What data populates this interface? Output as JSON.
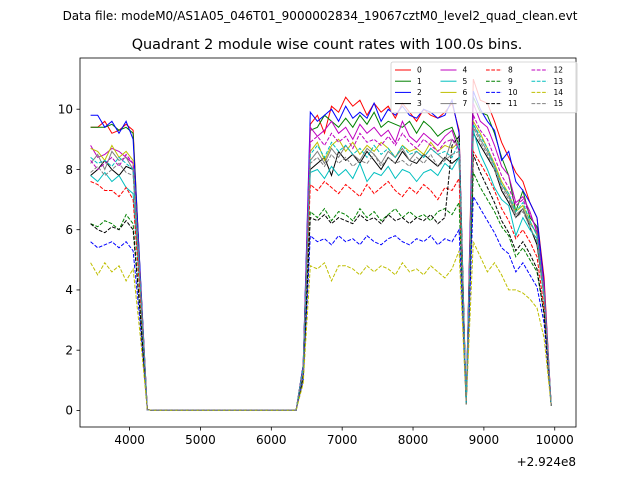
{
  "suptitle": "Data file: modeM0/AS1A05_046T01_9000002834_19067cztM0_level2_quad_clean.evt",
  "chart_data": {
    "type": "line",
    "title": "Quadrant 2 module wise count rates with 100.0s bins.",
    "xlabel": "",
    "ylabel": "",
    "x_offset_label": "+2.924e8",
    "xlim": [
      3300,
      10300
    ],
    "ylim": [
      -0.55,
      11.7
    ],
    "x_ticks": [
      4000,
      5000,
      6000,
      7000,
      8000,
      9000,
      10000
    ],
    "x_tick_labels": [
      "4000",
      "5000",
      "6000",
      "7000",
      "8000",
      "9000",
      "10000"
    ],
    "y_ticks": [
      0,
      2,
      4,
      6,
      8,
      10
    ],
    "y_tick_labels": [
      "0",
      "2",
      "4",
      "6",
      "8",
      "10"
    ],
    "legend_position": "top-right",
    "legend_columns": 4,
    "grid": false,
    "x": [
      3450,
      3550,
      3650,
      3750,
      3850,
      3950,
      4050,
      4150,
      4250,
      4350,
      4450,
      4550,
      4650,
      4750,
      4850,
      4950,
      5050,
      5150,
      5250,
      5350,
      5450,
      5550,
      5650,
      5750,
      5850,
      5950,
      6050,
      6150,
      6250,
      6350,
      6450,
      6550,
      6650,
      6750,
      6850,
      6950,
      7050,
      7150,
      7250,
      7350,
      7450,
      7550,
      7650,
      7750,
      7850,
      7950,
      8050,
      8150,
      8250,
      8350,
      8450,
      8550,
      8650,
      8750,
      8850,
      8950,
      9050,
      9150,
      9250,
      9350,
      9450,
      9550,
      9650,
      9750,
      9850,
      9950
    ],
    "series": [
      {
        "name": "0",
        "color": "#ff0000",
        "dash": "solid",
        "values": [
          9.4,
          9.4,
          9.6,
          9.2,
          9.3,
          9.5,
          9.3,
          4.5,
          0.02,
          0,
          0,
          0,
          0,
          0,
          0,
          0,
          0,
          0,
          0,
          0,
          0,
          0,
          0,
          0,
          0,
          0,
          0,
          0,
          0,
          0,
          1.5,
          9.5,
          9.8,
          9.2,
          10.1,
          9.9,
          10.4,
          10.1,
          10.3,
          9.8,
          10.2,
          9.9,
          10.1,
          9.7,
          10.2,
          9.9,
          9.6,
          10,
          9.8,
          9.7,
          9.9,
          10.2,
          9.3,
          0.2,
          11.0,
          10.3,
          10.2,
          9.6,
          8.9,
          8.4,
          7.9,
          7.6,
          6.9,
          6.4,
          4.4,
          0.15
        ]
      },
      {
        "name": "1",
        "color": "#008000",
        "dash": "solid",
        "values": [
          9.4,
          9.4,
          9.4,
          9.5,
          9.3,
          9.4,
          9.2,
          4.5,
          0.02,
          0,
          0,
          0,
          0,
          0,
          0,
          0,
          0,
          0,
          0,
          0,
          0,
          0,
          0,
          0,
          0,
          0,
          0,
          0,
          0,
          0,
          1.5,
          9.3,
          9.4,
          9.8,
          9.6,
          9.4,
          9.7,
          9.4,
          9.8,
          9.5,
          9.9,
          9.4,
          9.6,
          9.5,
          9.4,
          9.6,
          9.2,
          9.6,
          9.4,
          9.1,
          9.3,
          9.4,
          8.8,
          0.2,
          10.4,
          9.9,
          9.8,
          9.2,
          8.4,
          7.8,
          6.6,
          7.3,
          6.4,
          6.1,
          4.0,
          0.15
        ]
      },
      {
        "name": "2",
        "color": "#0000ff",
        "dash": "solid",
        "values": [
          9.8,
          9.8,
          9.4,
          9.6,
          9.2,
          9.6,
          9.0,
          4.6,
          0.02,
          0,
          0,
          0,
          0,
          0,
          0,
          0,
          0,
          0,
          0,
          0,
          0,
          0,
          0,
          0,
          0,
          0,
          0,
          0,
          0,
          0,
          1.5,
          9.9,
          9.6,
          9.8,
          10.0,
          9.6,
          10.1,
          9.7,
          9.9,
          9.7,
          10.2,
          9.6,
          10.0,
          9.8,
          10.1,
          9.8,
          9.7,
          10.0,
          9.9,
          9.7,
          9.8,
          10.3,
          9.2,
          0.2,
          10.6,
          10.0,
          9.6,
          9.3,
          8.3,
          8.6,
          7.6,
          7.3,
          6.9,
          6.4,
          4.2,
          0.15
        ]
      },
      {
        "name": "3",
        "color": "#000000",
        "dash": "solid",
        "values": [
          7.8,
          8.0,
          8.3,
          8.0,
          7.8,
          8.1,
          8.0,
          4.0,
          0.02,
          0,
          0,
          0,
          0,
          0,
          0,
          0,
          0,
          0,
          0,
          0,
          0,
          0,
          0,
          0,
          0,
          0,
          0,
          0,
          0,
          0,
          1.3,
          8.0,
          8.2,
          8.4,
          7.8,
          8.6,
          8.3,
          8.5,
          8.2,
          8.6,
          8.3,
          8.0,
          8.4,
          8.2,
          8.6,
          8.3,
          8.2,
          8.5,
          8.3,
          8.1,
          8.4,
          8.2,
          8.4,
          0.2,
          9.2,
          8.8,
          8.4,
          8.0,
          7.3,
          6.9,
          6.4,
          6.7,
          6.1,
          5.5,
          3.8,
          0.15
        ]
      },
      {
        "name": "4",
        "color": "#bf00bf",
        "dash": "solid",
        "values": [
          8.8,
          8.4,
          8.5,
          8.7,
          8.6,
          8.4,
          8.2,
          4.3,
          0.02,
          0,
          0,
          0,
          0,
          0,
          0,
          0,
          0,
          0,
          0,
          0,
          0,
          0,
          0,
          0,
          0,
          0,
          0,
          0,
          0,
          0,
          1.4,
          9.4,
          9.1,
          9.3,
          9.6,
          9.2,
          9.4,
          9.0,
          9.5,
          9.2,
          9.4,
          9.1,
          9.3,
          8.9,
          9.6,
          9.1,
          8.9,
          9.2,
          9.0,
          8.8,
          9.1,
          9.3,
          8.6,
          0.2,
          10.2,
          9.6,
          9.4,
          8.8,
          8.1,
          7.8,
          6.9,
          7.1,
          6.6,
          5.9,
          4.1,
          0.15
        ]
      },
      {
        "name": "5",
        "color": "#00bfbf",
        "dash": "solid",
        "values": [
          7.8,
          7.6,
          7.9,
          7.6,
          7.8,
          7.4,
          7.2,
          3.9,
          0.02,
          0,
          0,
          0,
          0,
          0,
          0,
          0,
          0,
          0,
          0,
          0,
          0,
          0,
          0,
          0,
          0,
          0,
          0,
          0,
          0,
          0,
          1.3,
          7.9,
          8.0,
          7.7,
          8.1,
          7.8,
          8.0,
          7.7,
          8.2,
          7.6,
          7.9,
          7.8,
          8.1,
          7.7,
          8.0,
          7.9,
          7.6,
          7.9,
          8.0,
          7.8,
          8.2,
          8.0,
          8.4,
          0.2,
          9.3,
          8.5,
          8.0,
          7.4,
          7.0,
          6.8,
          5.8,
          6.4,
          6.0,
          5.7,
          3.7,
          0.15
        ]
      },
      {
        "name": "6",
        "color": "#bfbf00",
        "dash": "solid",
        "values": [
          8.7,
          8.6,
          8.3,
          8.8,
          8.4,
          8.6,
          8.3,
          4.3,
          0.02,
          0,
          0,
          0,
          0,
          0,
          0,
          0,
          0,
          0,
          0,
          0,
          0,
          0,
          0,
          0,
          0,
          0,
          0,
          0,
          0,
          0,
          1.4,
          8.6,
          8.9,
          8.3,
          8.8,
          9.0,
          8.6,
          8.9,
          8.5,
          8.8,
          8.6,
          8.9,
          8.7,
          8.4,
          8.8,
          8.6,
          8.7,
          8.5,
          8.9,
          8.6,
          8.8,
          8.7,
          8.9,
          0.2,
          9.6,
          9.2,
          8.7,
          8.2,
          7.6,
          7.2,
          6.6,
          6.8,
          6.3,
          5.8,
          3.9,
          0.15
        ]
      },
      {
        "name": "7",
        "color": "#808080",
        "dash": "solid",
        "values": [
          8.2,
          8.5,
          8.0,
          8.6,
          8.3,
          8.4,
          8.0,
          4.2,
          0.02,
          0,
          0,
          0,
          0,
          0,
          0,
          0,
          0,
          0,
          0,
          0,
          0,
          0,
          0,
          0,
          0,
          0,
          0,
          0,
          0,
          0,
          1.4,
          8.3,
          8.6,
          8.2,
          8.7,
          8.4,
          8.8,
          8.5,
          8.3,
          8.7,
          8.5,
          8.2,
          8.6,
          8.4,
          8.7,
          8.3,
          8.6,
          8.4,
          8.7,
          8.5,
          8.3,
          9.0,
          8.8,
          0.2,
          9.5,
          9.0,
          8.6,
          8.1,
          7.5,
          7.1,
          6.5,
          6.7,
          6.2,
          5.9,
          3.9,
          0.15
        ]
      },
      {
        "name": "8",
        "color": "#ff0000",
        "dash": "dashed",
        "values": [
          7.6,
          7.5,
          7.3,
          7.3,
          7.1,
          7.4,
          7.0,
          3.8,
          0.02,
          0,
          0,
          0,
          0,
          0,
          0,
          0,
          0,
          0,
          0,
          0,
          0,
          0,
          0,
          0,
          0,
          0,
          0,
          0,
          0,
          0,
          1.2,
          7.5,
          7.3,
          7.6,
          7.4,
          7.2,
          7.5,
          7.3,
          7.1,
          7.5,
          7.2,
          7.4,
          7.6,
          7.3,
          7.1,
          7.4,
          7.2,
          7.5,
          7.3,
          7.0,
          7.4,
          7.3,
          7.7,
          0.2,
          8.6,
          8.2,
          7.8,
          7.3,
          6.7,
          6.3,
          5.7,
          6.0,
          5.6,
          5.1,
          3.4,
          0.15
        ]
      },
      {
        "name": "9",
        "color": "#008000",
        "dash": "dashed",
        "values": [
          6.2,
          6.1,
          6.3,
          6.2,
          6.0,
          6.5,
          6.2,
          3.3,
          0.02,
          0,
          0,
          0,
          0,
          0,
          0,
          0,
          0,
          0,
          0,
          0,
          0,
          0,
          0,
          0,
          0,
          0,
          0,
          0,
          0,
          0,
          1.1,
          6.6,
          6.4,
          6.7,
          6.3,
          6.6,
          6.5,
          6.3,
          6.7,
          6.4,
          6.6,
          6.3,
          6.5,
          6.7,
          6.4,
          6.6,
          6.4,
          6.5,
          6.3,
          6.6,
          6.7,
          6.5,
          6.9,
          0.2,
          7.9,
          7.4,
          7.0,
          6.6,
          6.1,
          5.8,
          5.1,
          5.4,
          5.0,
          4.6,
          3.2,
          0.15
        ]
      },
      {
        "name": "10",
        "color": "#0000ff",
        "dash": "dashed",
        "values": [
          5.6,
          5.4,
          5.5,
          5.6,
          5.4,
          5.6,
          5.3,
          2.9,
          0.02,
          0,
          0,
          0,
          0,
          0,
          0,
          0,
          0,
          0,
          0,
          0,
          0,
          0,
          0,
          0,
          0,
          0,
          0,
          0,
          0,
          0,
          1.0,
          5.8,
          5.6,
          5.7,
          5.5,
          5.8,
          5.6,
          5.7,
          5.5,
          5.8,
          5.6,
          5.5,
          5.7,
          5.8,
          5.6,
          5.5,
          5.7,
          5.6,
          5.8,
          5.5,
          5.7,
          5.6,
          6.0,
          0.2,
          7.1,
          6.7,
          6.3,
          5.9,
          5.4,
          5.2,
          4.6,
          4.9,
          4.5,
          4.1,
          2.9,
          0.15
        ]
      },
      {
        "name": "11",
        "color": "#000000",
        "dash": "dashed",
        "values": [
          6.2,
          6.0,
          5.9,
          6.1,
          6.0,
          6.3,
          6.0,
          3.2,
          0.02,
          0,
          0,
          0,
          0,
          0,
          0,
          0,
          0,
          0,
          0,
          0,
          0,
          0,
          0,
          0,
          0,
          0,
          0,
          0,
          0,
          0,
          1.1,
          6.4,
          6.3,
          6.5,
          6.2,
          6.4,
          6.3,
          6.2,
          6.5,
          6.3,
          6.4,
          6.2,
          6.5,
          6.3,
          6.4,
          6.2,
          6.4,
          6.3,
          6.5,
          6.2,
          6.4,
          8.8,
          9.1,
          0.2,
          8.5,
          7.9,
          7.4,
          6.9,
          6.3,
          5.9,
          5.3,
          5.6,
          5.2,
          4.7,
          3.2,
          0.15
        ]
      },
      {
        "name": "12",
        "color": "#bf00bf",
        "dash": "dashed",
        "values": [
          8.3,
          8.0,
          8.2,
          8.4,
          8.1,
          8.5,
          8.2,
          4.3,
          0.02,
          0,
          0,
          0,
          0,
          0,
          0,
          0,
          0,
          0,
          0,
          0,
          0,
          0,
          0,
          0,
          0,
          0,
          0,
          0,
          0,
          0,
          1.4,
          8.9,
          9.1,
          8.8,
          9.2,
          8.9,
          9.1,
          8.7,
          9.2,
          8.9,
          9.0,
          8.8,
          9.1,
          8.8,
          9.2,
          8.9,
          8.7,
          9.0,
          8.8,
          8.6,
          8.9,
          9.0,
          8.7,
          0.2,
          9.8,
          9.3,
          9.0,
          8.4,
          7.8,
          7.4,
          6.8,
          7.0,
          6.5,
          6.0,
          4.0,
          0.15
        ]
      },
      {
        "name": "13",
        "color": "#00bfbf",
        "dash": "dashed",
        "values": [
          8.4,
          8.2,
          8.3,
          8.1,
          8.4,
          8.2,
          8.0,
          4.2,
          0.02,
          0,
          0,
          0,
          0,
          0,
          0,
          0,
          0,
          0,
          0,
          0,
          0,
          0,
          0,
          0,
          0,
          0,
          0,
          0,
          0,
          0,
          1.4,
          8.5,
          8.8,
          8.4,
          8.9,
          8.6,
          8.8,
          8.5,
          8.7,
          8.4,
          8.8,
          8.5,
          8.7,
          8.4,
          8.8,
          8.5,
          8.6,
          8.4,
          8.7,
          8.5,
          8.6,
          8.4,
          8.9,
          0.2,
          9.5,
          9.1,
          8.7,
          8.1,
          7.5,
          7.2,
          6.6,
          6.9,
          6.3,
          5.8,
          3.9,
          0.15
        ]
      },
      {
        "name": "14",
        "color": "#bfbf00",
        "dash": "dashed",
        "values": [
          4.9,
          4.5,
          4.9,
          4.6,
          4.8,
          4.3,
          4.7,
          2.5,
          0.02,
          0,
          0,
          0,
          0,
          0,
          0,
          0,
          0,
          0,
          0,
          0,
          0,
          0,
          0,
          0,
          0,
          0,
          0,
          0,
          0,
          0,
          0.9,
          4.8,
          4.7,
          4.9,
          4.3,
          4.8,
          4.8,
          4.7,
          4.5,
          4.8,
          4.6,
          4.8,
          4.7,
          4.5,
          4.9,
          4.6,
          4.7,
          4.5,
          4.8,
          4.6,
          4.4,
          4.7,
          5.3,
          0.2,
          5.6,
          5.1,
          4.6,
          4.9,
          4.5,
          4.0,
          4.0,
          3.9,
          3.7,
          3.4,
          2.4,
          0.15
        ]
      },
      {
        "name": "15",
        "color": "#808080",
        "dash": "dashed",
        "values": [
          7.9,
          8.1,
          7.8,
          8.0,
          8.2,
          7.9,
          7.8,
          4.1,
          0.02,
          0,
          0,
          0,
          0,
          0,
          0,
          0,
          0,
          0,
          0,
          0,
          0,
          0,
          0,
          0,
          0,
          0,
          0,
          0,
          0,
          0,
          1.3,
          8.2,
          8.4,
          8.1,
          8.5,
          8.2,
          8.4,
          8.1,
          8.3,
          8.2,
          8.5,
          8.1,
          8.4,
          8.2,
          8.3,
          8.1,
          8.4,
          8.2,
          8.5,
          8.1,
          8.3,
          8.5,
          8.6,
          0.2,
          9.4,
          8.9,
          8.5,
          8.0,
          7.4,
          7.0,
          6.4,
          6.6,
          6.1,
          5.6,
          3.8,
          0.15
        ]
      }
    ]
  }
}
